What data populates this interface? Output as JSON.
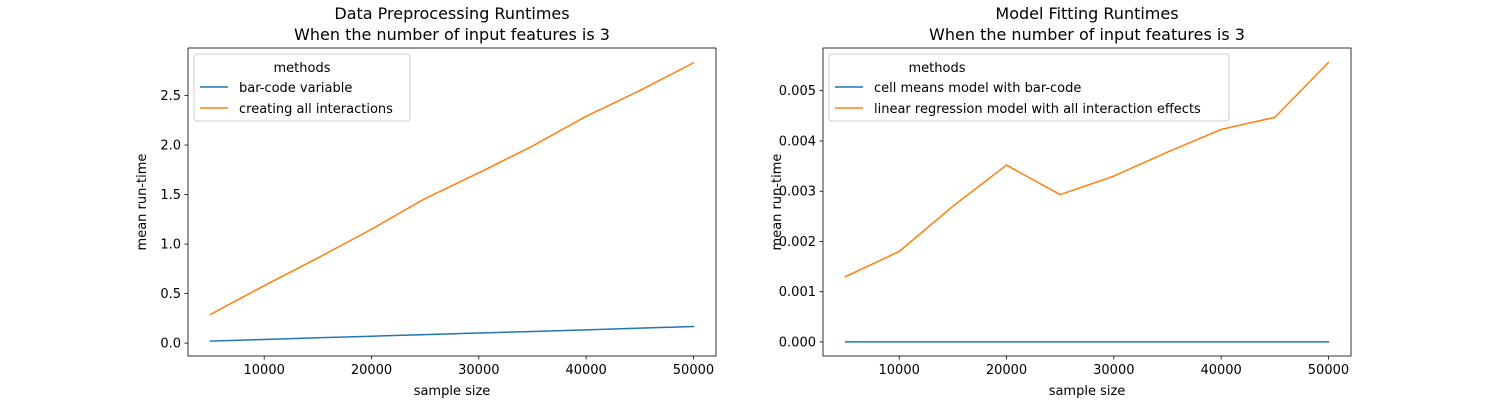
{
  "chart_data": [
    {
      "type": "line",
      "title": "Data Preprocessing Runtimes",
      "subtitle": "When the number of input features is 3",
      "xlabel": "sample size",
      "ylabel": "mean run-time",
      "xlim": [
        2900,
        52100
      ],
      "ylim": [
        -0.13,
        2.98
      ],
      "xticks": [
        10000,
        20000,
        30000,
        40000,
        50000
      ],
      "xtick_labels": [
        "10000",
        "20000",
        "30000",
        "40000",
        "50000"
      ],
      "yticks": [
        0.0,
        0.5,
        1.0,
        1.5,
        2.0,
        2.5
      ],
      "ytick_labels": [
        "0.0",
        "0.5",
        "1.0",
        "1.5",
        "2.0",
        "2.5"
      ],
      "grid": false,
      "legend": {
        "title": "methods",
        "placement": "top-left"
      },
      "x": [
        5000,
        10000,
        15000,
        20000,
        25000,
        30000,
        35000,
        40000,
        45000,
        50000
      ],
      "series": [
        {
          "name": "bar-code variable",
          "color": "#1f77b4",
          "values": [
            0.02,
            0.037,
            0.054,
            0.07,
            0.086,
            0.102,
            0.118,
            0.134,
            0.151,
            0.168
          ]
        },
        {
          "name": "creating all interactions",
          "color": "#ff7f0e",
          "values": [
            0.29,
            0.58,
            0.86,
            1.15,
            1.46,
            1.72,
            1.99,
            2.29,
            2.55,
            2.83
          ]
        }
      ]
    },
    {
      "type": "line",
      "title": "Model Fitting Runtimes",
      "subtitle": "When the number of input features is 3",
      "xlabel": "sample size",
      "ylabel": "mean run-time",
      "xlim": [
        2900,
        52100
      ],
      "ylim": [
        -0.00028,
        0.00585
      ],
      "xticks": [
        10000,
        20000,
        30000,
        40000,
        50000
      ],
      "xtick_labels": [
        "10000",
        "20000",
        "30000",
        "40000",
        "50000"
      ],
      "yticks": [
        0.0,
        0.001,
        0.002,
        0.003,
        0.004,
        0.005
      ],
      "ytick_labels": [
        "0.000",
        "0.001",
        "0.002",
        "0.003",
        "0.004",
        "0.005"
      ],
      "grid": false,
      "legend": {
        "title": "methods",
        "placement": "top-left"
      },
      "x": [
        5000,
        10000,
        15000,
        20000,
        25000,
        30000,
        35000,
        40000,
        45000,
        50000
      ],
      "series": [
        {
          "name": "cell means model with bar-code",
          "color": "#1f77b4",
          "values": [
            0.0,
            0.0,
            0.0,
            0.0,
            0.0,
            0.0,
            0.0,
            0.0,
            0.0,
            0.0
          ]
        },
        {
          "name": "linear regression model with all interaction effects",
          "color": "#ff7f0e",
          "values": [
            0.0013,
            0.0018,
            0.0027,
            0.00352,
            0.00293,
            0.0033,
            0.00378,
            0.00423,
            0.00447,
            0.00556
          ]
        }
      ]
    }
  ]
}
